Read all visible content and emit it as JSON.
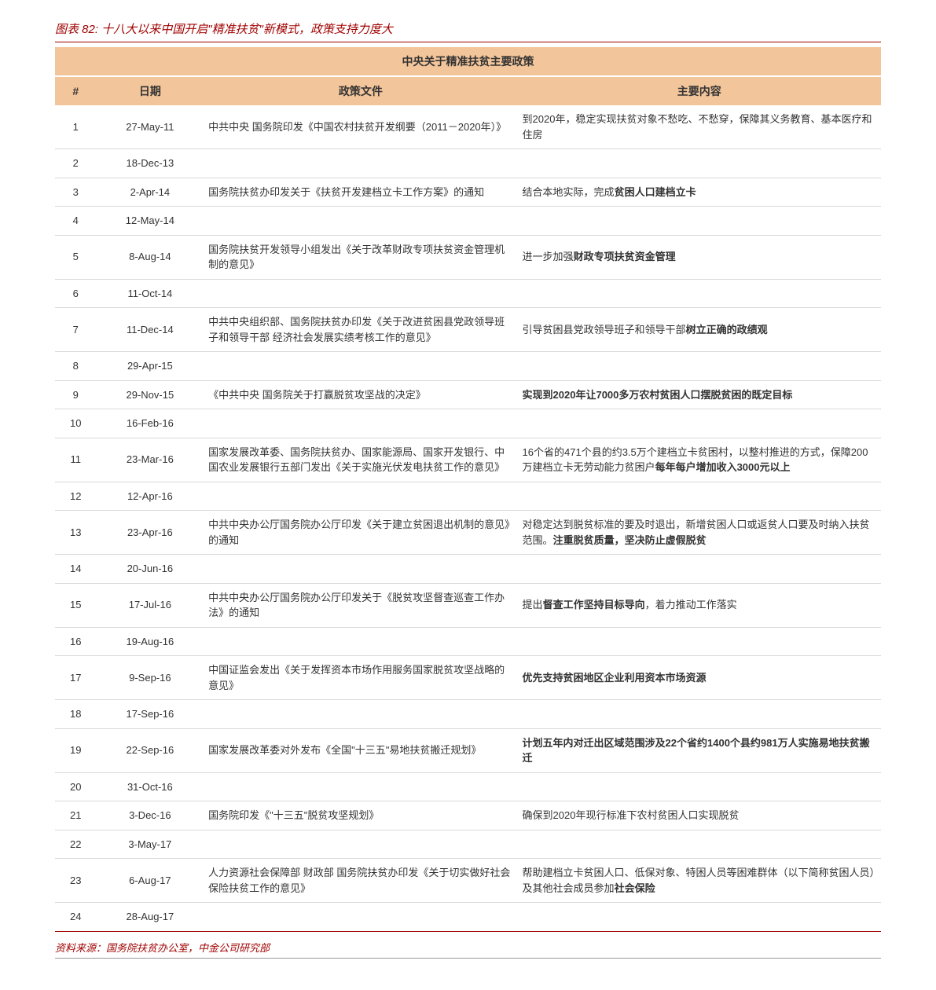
{
  "figure_title": "图表 82: 十八大以来中国开启\"精准扶贫\"新模式，政策支持力度大",
  "table_caption": "中央关于精准扶贫主要政策",
  "headers": {
    "idx": "#",
    "date": "日期",
    "doc": "政策文件",
    "sum": "主要内容"
  },
  "colors": {
    "accent": "#a00000",
    "header_bg": "#f3c59a",
    "row_border": "#d9d9d9"
  },
  "rows": [
    {
      "n": 1,
      "date": "27-May-11",
      "doc": "中共中央 国务院印发《中国农村扶贫开发纲要（2011－2020年）》",
      "sum": "到2020年，稳定实现扶贫对象不愁吃、不愁穿，保障其义务教育、基本医疗和住房"
    },
    {
      "n": 2,
      "date": "18-Dec-13",
      "doc": "",
      "sum": ""
    },
    {
      "n": 3,
      "date": "2-Apr-14",
      "doc": "国务院扶贫办印发关于《扶贫开发建档立卡工作方案》的通知",
      "sum": "结合本地实际，完成<b>贫困人口建档立卡</b>"
    },
    {
      "n": 4,
      "date": "12-May-14",
      "doc": "",
      "sum": ""
    },
    {
      "n": 5,
      "date": "8-Aug-14",
      "doc": "国务院扶贫开发领导小组发出《关于改革财政专项扶贫资金管理机制的意见》",
      "sum": "进一步加强<b>财政专项扶贫资金管理</b>"
    },
    {
      "n": 6,
      "date": "11-Oct-14",
      "doc": "",
      "sum": ""
    },
    {
      "n": 7,
      "date": "11-Dec-14",
      "doc": "中共中央组织部、国务院扶贫办印发《关于改进贫困县党政领导班子和领导干部 经济社会发展实绩考核工作的意见》",
      "sum": "引导贫困县党政领导班子和领导干部<b>树立正确的政绩观</b>"
    },
    {
      "n": 8,
      "date": "29-Apr-15",
      "doc": "",
      "sum": ""
    },
    {
      "n": 9,
      "date": "29-Nov-15",
      "doc": "《中共中央 国务院关于打赢脱贫攻坚战的决定》",
      "sum": "<b>实现到2020年让7000多万农村贫困人口摆脱贫困的既定目标</b>"
    },
    {
      "n": 10,
      "date": "16-Feb-16",
      "doc": "",
      "sum": ""
    },
    {
      "n": 11,
      "date": "23-Mar-16",
      "doc": "国家发展改革委、国务院扶贫办、国家能源局、国家开发银行、中国农业发展银行五部门发出《关于实施光伏发电扶贫工作的意见》",
      "sum": "16个省的471个县的约3.5万个建档立卡贫困村，以整村推进的方式，保障200万建档立卡无劳动能力贫困户<b>每年每户增加收入3000元以上</b>"
    },
    {
      "n": 12,
      "date": "12-Apr-16",
      "doc": "",
      "sum": ""
    },
    {
      "n": 13,
      "date": "23-Apr-16",
      "doc": "中共中央办公厅国务院办公厅印发《关于建立贫困退出机制的意见》的通知",
      "sum": "对稳定达到脱贫标准的要及时退出，新增贫困人口或返贫人口要及时纳入扶贫范围。<b>注重脱贫质量，坚决防止虚假脱贫</b>"
    },
    {
      "n": 14,
      "date": "20-Jun-16",
      "doc": "",
      "sum": ""
    },
    {
      "n": 15,
      "date": "17-Jul-16",
      "doc": "中共中央办公厅国务院办公厅印发关于《脱贫攻坚督查巡查工作办法》的通知",
      "sum": "提出<b>督查工作坚持目标导向</b>，着力推动工作落实"
    },
    {
      "n": 16,
      "date": "19-Aug-16",
      "doc": "",
      "sum": ""
    },
    {
      "n": 17,
      "date": "9-Sep-16",
      "doc": "中国证监会发出《关于发挥资本市场作用服务国家脱贫攻坚战略的意见》",
      "sum": "<b>优先支持贫困地区企业利用资本市场资源</b>"
    },
    {
      "n": 18,
      "date": "17-Sep-16",
      "doc": "",
      "sum": ""
    },
    {
      "n": 19,
      "date": "22-Sep-16",
      "doc": "国家发展改革委对外发布《全国\"十三五\"易地扶贫搬迁规划》",
      "sum": "<b>计划五年内对迁出区域范围涉及22个省约1400个县约981万人实施易地扶贫搬迁</b>"
    },
    {
      "n": 20,
      "date": "31-Oct-16",
      "doc": "",
      "sum": ""
    },
    {
      "n": 21,
      "date": "3-Dec-16",
      "doc": "国务院印发《\"十三五\"脱贫攻坚规划》",
      "sum": "确保到2020年现行标准下农村贫困人口实现脱贫"
    },
    {
      "n": 22,
      "date": "3-May-17",
      "doc": "",
      "sum": ""
    },
    {
      "n": 23,
      "date": "6-Aug-17",
      "doc": "人力资源社会保障部 财政部 国务院扶贫办印发《关于切实做好社会保险扶贫工作的意见》",
      "sum": "帮助建档立卡贫困人口、低保对象、特困人员等困难群体（以下简称贫困人员）及其他社会成员参加<b>社会保险</b>"
    },
    {
      "n": 24,
      "date": "28-Aug-17",
      "doc": "",
      "sum": ""
    }
  ],
  "source": "资料来源：国务院扶贫办公室，中金公司研究部"
}
